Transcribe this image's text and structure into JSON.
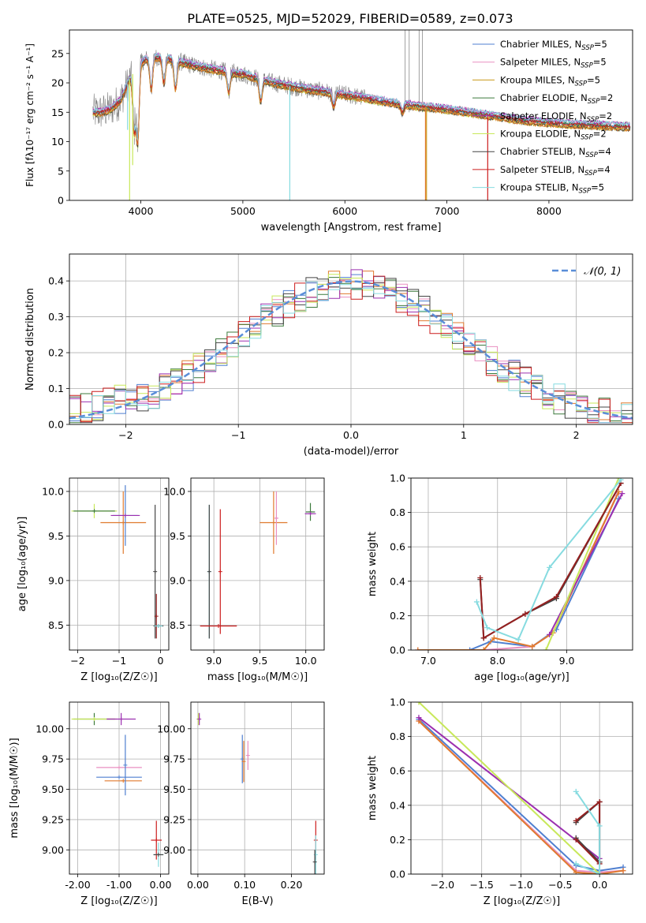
{
  "figure": {
    "title": "PLATE=0525, MJD=52029, FIBERID=0589, z=0.073"
  },
  "colors": {
    "chabrier_miles": "#4f7fd0",
    "salpeter_miles": "#e98fc0",
    "kroupa_miles": "#c99a1a",
    "chabrier_elodie": "#3c7a3c",
    "salpeter_elodie": "#9c30b0",
    "kroupa_elodie": "#c8e85a",
    "chabrier_stelib": "#444444",
    "salpeter_stelib": "#cc1d1d",
    "kroupa_stelib": "#86dbe0",
    "data_gray": "#808080",
    "normal_curve": "#5a8ed8",
    "orange": "#e07a2e",
    "darkred": "#962020",
    "grid": "#b0b0b0"
  },
  "chart_data": [
    {
      "id": "spectrum",
      "type": "line",
      "title": "PLATE=0525, MJD=52029, FIBERID=0589, z=0.073",
      "xlabel": "wavelength [Angstrom, rest frame]",
      "ylabel": "Flux [fλ10⁻¹⁷ erg cm⁻² s⁻¹ A⁻¹]",
      "xlim": [
        3300,
        8820
      ],
      "ylim": [
        0,
        29
      ],
      "xticks": [
        4000,
        5000,
        6000,
        7000,
        8000
      ],
      "yticks": [
        0,
        5,
        10,
        15,
        20,
        25
      ],
      "grid": false,
      "legend_position": "top-right",
      "legend": [
        {
          "label": "Chabrier MILES, N",
          "sub": "SSP",
          "suffix": "=5",
          "color": "chabrier_miles"
        },
        {
          "label": "Salpeter MILES, N",
          "sub": "SSP",
          "suffix": "=5",
          "color": "salpeter_miles"
        },
        {
          "label": "Kroupa MILES, N",
          "sub": "SSP",
          "suffix": "=5",
          "color": "kroupa_miles"
        },
        {
          "label": "Chabrier ELODIE, N",
          "sub": "SSP",
          "suffix": "=2",
          "color": "chabrier_elodie"
        },
        {
          "label": "Salpeter ELODIE, N",
          "sub": "SSP",
          "suffix": "=2",
          "color": "salpeter_elodie"
        },
        {
          "label": "Kroupa ELODIE, N",
          "sub": "SSP",
          "suffix": "=2",
          "color": "kroupa_elodie"
        },
        {
          "label": "Chabrier STELIB, N",
          "sub": "SSP",
          "suffix": "=4",
          "color": "chabrier_stelib"
        },
        {
          "label": "Salpeter STELIB, N",
          "sub": "SSP",
          "suffix": "=4",
          "color": "salpeter_stelib"
        },
        {
          "label": "Kroupa STELIB, N",
          "sub": "SSP",
          "suffix": "=5",
          "color": "kroupa_stelib"
        }
      ],
      "continuum": [
        [
          3530,
          15
        ],
        [
          3600,
          15
        ],
        [
          3700,
          15.5
        ],
        [
          3800,
          17
        ],
        [
          3900,
          21
        ],
        [
          4000,
          23.5
        ],
        [
          4100,
          24.5
        ],
        [
          4300,
          24
        ],
        [
          4500,
          23
        ],
        [
          4800,
          22
        ],
        [
          5000,
          21.5
        ],
        [
          5300,
          20
        ],
        [
          5600,
          19
        ],
        [
          6000,
          18
        ],
        [
          6500,
          16.5
        ],
        [
          7000,
          15.5
        ],
        [
          7400,
          14.5
        ],
        [
          7800,
          13.5
        ],
        [
          8200,
          13
        ],
        [
          8500,
          12.8
        ],
        [
          8800,
          12.5
        ]
      ],
      "model_absorption": [
        [
          3934,
          12
        ],
        [
          3969,
          10
        ],
        [
          4102,
          19
        ],
        [
          4227,
          20
        ],
        [
          4340,
          19
        ],
        [
          4861,
          18.5
        ],
        [
          5175,
          17
        ],
        [
          5890,
          16
        ],
        [
          6563,
          15
        ]
      ],
      "model_spikes": [
        {
          "x": 3890,
          "min": 0,
          "color": "kroupa_elodie"
        },
        {
          "x": 3920,
          "min": 6,
          "color": "kroupa_elodie"
        },
        {
          "x": 3870,
          "min": 12,
          "color": "kroupa_stelib"
        },
        {
          "x": 5460,
          "min": 0,
          "color": "kroupa_stelib"
        },
        {
          "x": 6790,
          "min": 0,
          "color": "orange"
        },
        {
          "x": 7400,
          "min": 0,
          "color": "salpeter_stelib"
        },
        {
          "x": 6800,
          "min": 0,
          "color": "kroupa_miles"
        }
      ],
      "data_spikes": [
        [
          6590,
          29
        ],
        [
          6630,
          29
        ],
        [
          6728,
          29
        ],
        [
          6760,
          29
        ]
      ]
    },
    {
      "id": "residual",
      "type": "line",
      "xlabel": "(data-model)/error",
      "ylabel": "Normed distribution",
      "xlim": [
        -2.5,
        2.5
      ],
      "ylim": [
        0,
        0.475
      ],
      "xticks": [
        -2,
        -1,
        0,
        1,
        2
      ],
      "yticks": [
        0.0,
        0.1,
        0.2,
        0.3,
        0.4
      ],
      "grid": true,
      "legend_position": "top-right",
      "legend": [
        {
          "label": "𝒩(0, 1)",
          "color": "normal_curve",
          "dashed": true
        }
      ],
      "bin_width": 0.1,
      "series_colors": [
        "chabrier_miles",
        "salpeter_miles",
        "orange",
        "chabrier_elodie",
        "salpeter_elodie",
        "kroupa_elodie",
        "chabrier_stelib",
        "salpeter_stelib",
        "kroupa_stelib"
      ]
    },
    {
      "id": "age_vs_Z",
      "type": "scatter",
      "xlabel": "Z [log₁₀(Z/Z☉)]",
      "ylabel": "age  [log₁₀(age/yr)]",
      "xlim": [
        -2.2,
        0.2
      ],
      "ylim": [
        8.22,
        10.15
      ],
      "xticks": [
        -2,
        -1,
        0
      ],
      "yticks": [
        8.5,
        9.0,
        9.5,
        10.0
      ],
      "grid": true,
      "errorbars": [
        {
          "x": -1.6,
          "y": 9.78,
          "xerr": 0.55,
          "yerr": 0.08,
          "color": "kroupa_elodie"
        },
        {
          "x": -1.6,
          "y": 9.78,
          "xerr": 0.5,
          "yerr": 0.0,
          "color": "chabrier_elodie"
        },
        {
          "x": -0.9,
          "y": 9.65,
          "xerr": 0.55,
          "yerr": 0.35,
          "color": "orange"
        },
        {
          "x": -0.85,
          "y": 9.73,
          "xerr": 0.3,
          "yerr": 0.34,
          "color": "chabrier_miles"
        },
        {
          "x": -0.85,
          "y": 9.73,
          "xerr": 0.35,
          "yerr": 0.0,
          "color": "salpeter_elodie"
        },
        {
          "x": -0.05,
          "y": 8.49,
          "xerr": 0.12,
          "yerr": 0.0,
          "color": "chabrier_stelib"
        },
        {
          "x": -0.13,
          "y": 9.1,
          "xerr": 0.0,
          "yerr": 0.75,
          "color": "chabrier_stelib"
        },
        {
          "x": -0.1,
          "y": 8.6,
          "xerr": 0.0,
          "yerr": 0.25,
          "color": "darkred"
        },
        {
          "x": -0.05,
          "y": 8.49,
          "xerr": 0.1,
          "yerr": 0.0,
          "color": "kroupa_stelib"
        }
      ]
    },
    {
      "id": "age_vs_mass",
      "type": "scatter",
      "xlabel": "mass [log₁₀(M/M☉)]",
      "xlim": [
        8.75,
        10.2
      ],
      "ylim": [
        8.22,
        10.15
      ],
      "xticks": [
        9.0,
        9.5,
        10.0
      ],
      "yticks": [
        8.5,
        9.0,
        9.5,
        10.0
      ],
      "grid": true,
      "errorbars": [
        {
          "x": 8.95,
          "y": 9.1,
          "xerr": 0.0,
          "yerr": 0.75,
          "color": "kroupa_stelib"
        },
        {
          "x": 8.95,
          "y": 9.1,
          "xerr": 0.0,
          "yerr": 0.75,
          "color": "chabrier_stelib"
        },
        {
          "x": 9.05,
          "y": 8.49,
          "xerr": 0.2,
          "yerr": 0.0,
          "color": "salpeter_stelib"
        },
        {
          "x": 9.07,
          "y": 9.1,
          "xerr": 0.0,
          "yerr": 0.7,
          "color": "salpeter_stelib"
        },
        {
          "x": 9.65,
          "y": 9.65,
          "xerr": 0.15,
          "yerr": 0.35,
          "color": "orange"
        },
        {
          "x": 9.68,
          "y": 9.7,
          "xerr": 0.02,
          "yerr": 0.3,
          "color": "salpeter_miles"
        },
        {
          "x": 10.05,
          "y": 9.77,
          "xerr": 0.05,
          "yerr": 0.1,
          "color": "chabrier_elodie"
        },
        {
          "x": 10.05,
          "y": 9.75,
          "xerr": 0.06,
          "yerr": 0.0,
          "color": "salpeter_elodie"
        }
      ]
    },
    {
      "id": "weight_vs_age",
      "type": "line",
      "xlabel": "age  [log₁₀(age/yr)]",
      "ylabel": "mass weight",
      "xlim": [
        6.75,
        9.95
      ],
      "ylim": [
        0,
        1
      ],
      "xticks": [
        7,
        8,
        9
      ],
      "yticks": [
        0.0,
        0.2,
        0.4,
        0.6,
        0.8,
        1.0
      ],
      "grid": true,
      "series": [
        {
          "color": "chabrier_miles",
          "x": [
            7.6,
            7.9,
            8.5,
            8.85,
            9.75
          ],
          "y": [
            0.0,
            0.05,
            0.02,
            0.12,
            0.88
          ]
        },
        {
          "color": "salpeter_miles",
          "x": [
            6.85,
            7.8,
            8.5,
            8.8,
            9.72
          ],
          "y": [
            0.0,
            0.0,
            0.02,
            0.1,
            0.9
          ]
        },
        {
          "color": "orange",
          "x": [
            6.85,
            7.8,
            7.95,
            8.5,
            8.8,
            9.75
          ],
          "y": [
            0.0,
            0.0,
            0.07,
            0.02,
            0.1,
            0.92
          ]
        },
        {
          "color": "salpeter_elodie",
          "x": [
            8.75,
            9.8
          ],
          "y": [
            0.09,
            0.91
          ]
        },
        {
          "color": "kroupa_elodie",
          "x": [
            8.7,
            9.75
          ],
          "y": [
            0.0,
            1.0
          ]
        },
        {
          "color": "chabrier_stelib",
          "x": [
            7.75,
            7.8,
            8.4,
            8.85,
            9.78
          ],
          "y": [
            0.41,
            0.07,
            0.21,
            0.3,
            0.97
          ]
        },
        {
          "color": "darkred",
          "x": [
            7.75,
            7.8,
            8.4,
            8.85,
            9.78
          ],
          "y": [
            0.42,
            0.07,
            0.21,
            0.31,
            0.97
          ]
        },
        {
          "color": "kroupa_stelib",
          "x": [
            7.7,
            7.85,
            8.3,
            8.75,
            9.78
          ],
          "y": [
            0.28,
            0.13,
            0.06,
            0.48,
            0.99
          ]
        }
      ]
    },
    {
      "id": "mass_vs_Z",
      "type": "scatter",
      "xlabel": "Z [log₁₀(Z/Z☉)]",
      "ylabel": "mass [log₁₀(M/M☉)]",
      "xlim": [
        -2.2,
        0.2
      ],
      "ylim": [
        8.8,
        10.22
      ],
      "xticks": [
        -2,
        -1,
        0
      ],
      "yticks": [
        9.0,
        9.25,
        9.5,
        9.75,
        10.0
      ],
      "grid": true,
      "errorbars": [
        {
          "x": -1.6,
          "y": 10.08,
          "xerr": 0.5,
          "yerr": 0.05,
          "color": "chabrier_elodie"
        },
        {
          "x": -1.6,
          "y": 10.08,
          "xerr": 0.55,
          "yerr": 0.0,
          "color": "kroupa_elodie"
        },
        {
          "x": -0.95,
          "y": 10.08,
          "xerr": 0.35,
          "yerr": 0.05,
          "color": "salpeter_elodie"
        },
        {
          "x": -1.0,
          "y": 9.68,
          "xerr": 0.55,
          "yerr": 0.0,
          "color": "salpeter_miles"
        },
        {
          "x": -1.0,
          "y": 9.6,
          "xerr": 0.55,
          "yerr": 0.0,
          "color": "chabrier_miles"
        },
        {
          "x": -0.9,
          "y": 9.57,
          "xerr": 0.45,
          "yerr": 0.0,
          "color": "orange"
        },
        {
          "x": -0.85,
          "y": 9.7,
          "xerr": 0.0,
          "yerr": 0.25,
          "color": "chabrier_miles"
        },
        {
          "x": -0.1,
          "y": 9.08,
          "xerr": 0.13,
          "yerr": 0.16,
          "color": "salpeter_stelib"
        },
        {
          "x": -0.05,
          "y": 8.96,
          "xerr": 0.12,
          "yerr": 0.1,
          "color": "kroupa_stelib"
        },
        {
          "x": -0.05,
          "y": 8.96,
          "xerr": 0.12,
          "yerr": 0.0,
          "color": "chabrier_stelib"
        }
      ]
    },
    {
      "id": "mass_vs_ebv",
      "type": "scatter",
      "xlabel": "E(B-V)",
      "xlim": [
        -0.015,
        0.27
      ],
      "ylim": [
        8.8,
        10.22
      ],
      "xticks": [
        0.0,
        0.1,
        0.2
      ],
      "yticks": [
        9.0,
        9.25,
        9.5,
        9.75,
        10.0
      ],
      "grid": true,
      "errorbars": [
        {
          "x": 0.001,
          "y": 10.08,
          "xerr": 0.0,
          "yerr": 0.05,
          "color": "kroupa_elodie"
        },
        {
          "x": 0.003,
          "y": 10.08,
          "xerr": 0.0,
          "yerr": 0.05,
          "color": "salpeter_elodie"
        },
        {
          "x": 0.095,
          "y": 9.75,
          "xerr": 0.0,
          "yerr": 0.2,
          "color": "chabrier_miles"
        },
        {
          "x": 0.098,
          "y": 9.73,
          "xerr": 0.0,
          "yerr": 0.17,
          "color": "orange"
        },
        {
          "x": 0.107,
          "y": 9.78,
          "xerr": 0.0,
          "yerr": 0.12,
          "color": "salpeter_miles"
        },
        {
          "x": 0.252,
          "y": 9.08,
          "xerr": 0.0,
          "yerr": 0.16,
          "color": "salpeter_stelib"
        },
        {
          "x": 0.252,
          "y": 8.96,
          "xerr": 0.0,
          "yerr": 0.16,
          "color": "kroupa_stelib"
        },
        {
          "x": 0.25,
          "y": 8.9,
          "xerr": 0.0,
          "yerr": 0.1,
          "color": "chabrier_stelib"
        }
      ]
    },
    {
      "id": "weight_vs_Z",
      "type": "line",
      "xlabel": "Z [log₁₀(Z/Z☉)]",
      "ylabel": "mass weight",
      "xlim": [
        -2.4,
        0.42
      ],
      "ylim": [
        0,
        1
      ],
      "xticks": [
        -2.0,
        -1.5,
        -1.0,
        -0.5,
        0.0
      ],
      "yticks": [
        0.0,
        0.2,
        0.4,
        0.6,
        0.8,
        1.0
      ],
      "grid": true,
      "series": [
        {
          "color": "chabrier_miles",
          "x": [
            -2.3,
            -0.3,
            0.0,
            0.3
          ],
          "y": [
            0.9,
            0.05,
            0.02,
            0.04
          ]
        },
        {
          "color": "salpeter_miles",
          "x": [
            -2.3,
            -0.3,
            0.0,
            0.3
          ],
          "y": [
            0.89,
            0.02,
            0.01,
            0.02
          ]
        },
        {
          "color": "orange",
          "x": [
            -2.3,
            -0.3,
            0.0,
            0.3
          ],
          "y": [
            0.89,
            0.01,
            0.0,
            0.02
          ]
        },
        {
          "color": "salpeter_elodie",
          "x": [
            -2.3,
            0.0
          ],
          "y": [
            0.91,
            0.09
          ]
        },
        {
          "color": "kroupa_elodie",
          "x": [
            -2.3,
            0.0
          ],
          "y": [
            1.0,
            0.0
          ]
        },
        {
          "color": "chabrier_stelib",
          "x": [
            -0.3,
            0.0,
            0.0,
            -0.3
          ],
          "y": [
            0.3,
            0.42,
            0.07,
            0.21
          ]
        },
        {
          "color": "darkred",
          "x": [
            -0.3,
            0.0,
            0.0,
            -0.3
          ],
          "y": [
            0.31,
            0.42,
            0.06,
            0.2
          ]
        },
        {
          "color": "kroupa_stelib",
          "x": [
            -0.3,
            0.0,
            0.0,
            -0.3
          ],
          "y": [
            0.48,
            0.28,
            0.0,
            0.06
          ]
        }
      ]
    }
  ]
}
